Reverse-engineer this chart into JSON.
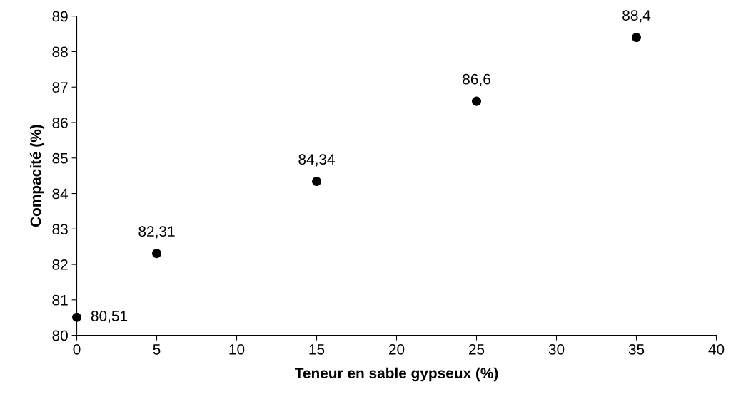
{
  "chart_data": {
    "type": "scatter",
    "xlabel": "Teneur en sable gypseux (%)",
    "ylabel": "Compacité (%)",
    "x": [
      0,
      5,
      15,
      25,
      35
    ],
    "series": [
      {
        "color": "#000000",
        "values": [
          80.51,
          82.31,
          84.34,
          86.6,
          88.4
        ],
        "value_labels": [
          "80,51",
          "82,31",
          "84,34",
          "86,6",
          "88,4"
        ]
      }
    ],
    "xlim": [
      0,
      40
    ],
    "xticks": [
      0,
      5,
      10,
      15,
      20,
      25,
      30,
      35,
      40
    ],
    "ylim": [
      80,
      89
    ],
    "yticks": [
      80,
      81,
      82,
      83,
      84,
      85,
      86,
      87,
      88,
      89
    ],
    "marker": "circle",
    "grid": false,
    "legend": false
  }
}
